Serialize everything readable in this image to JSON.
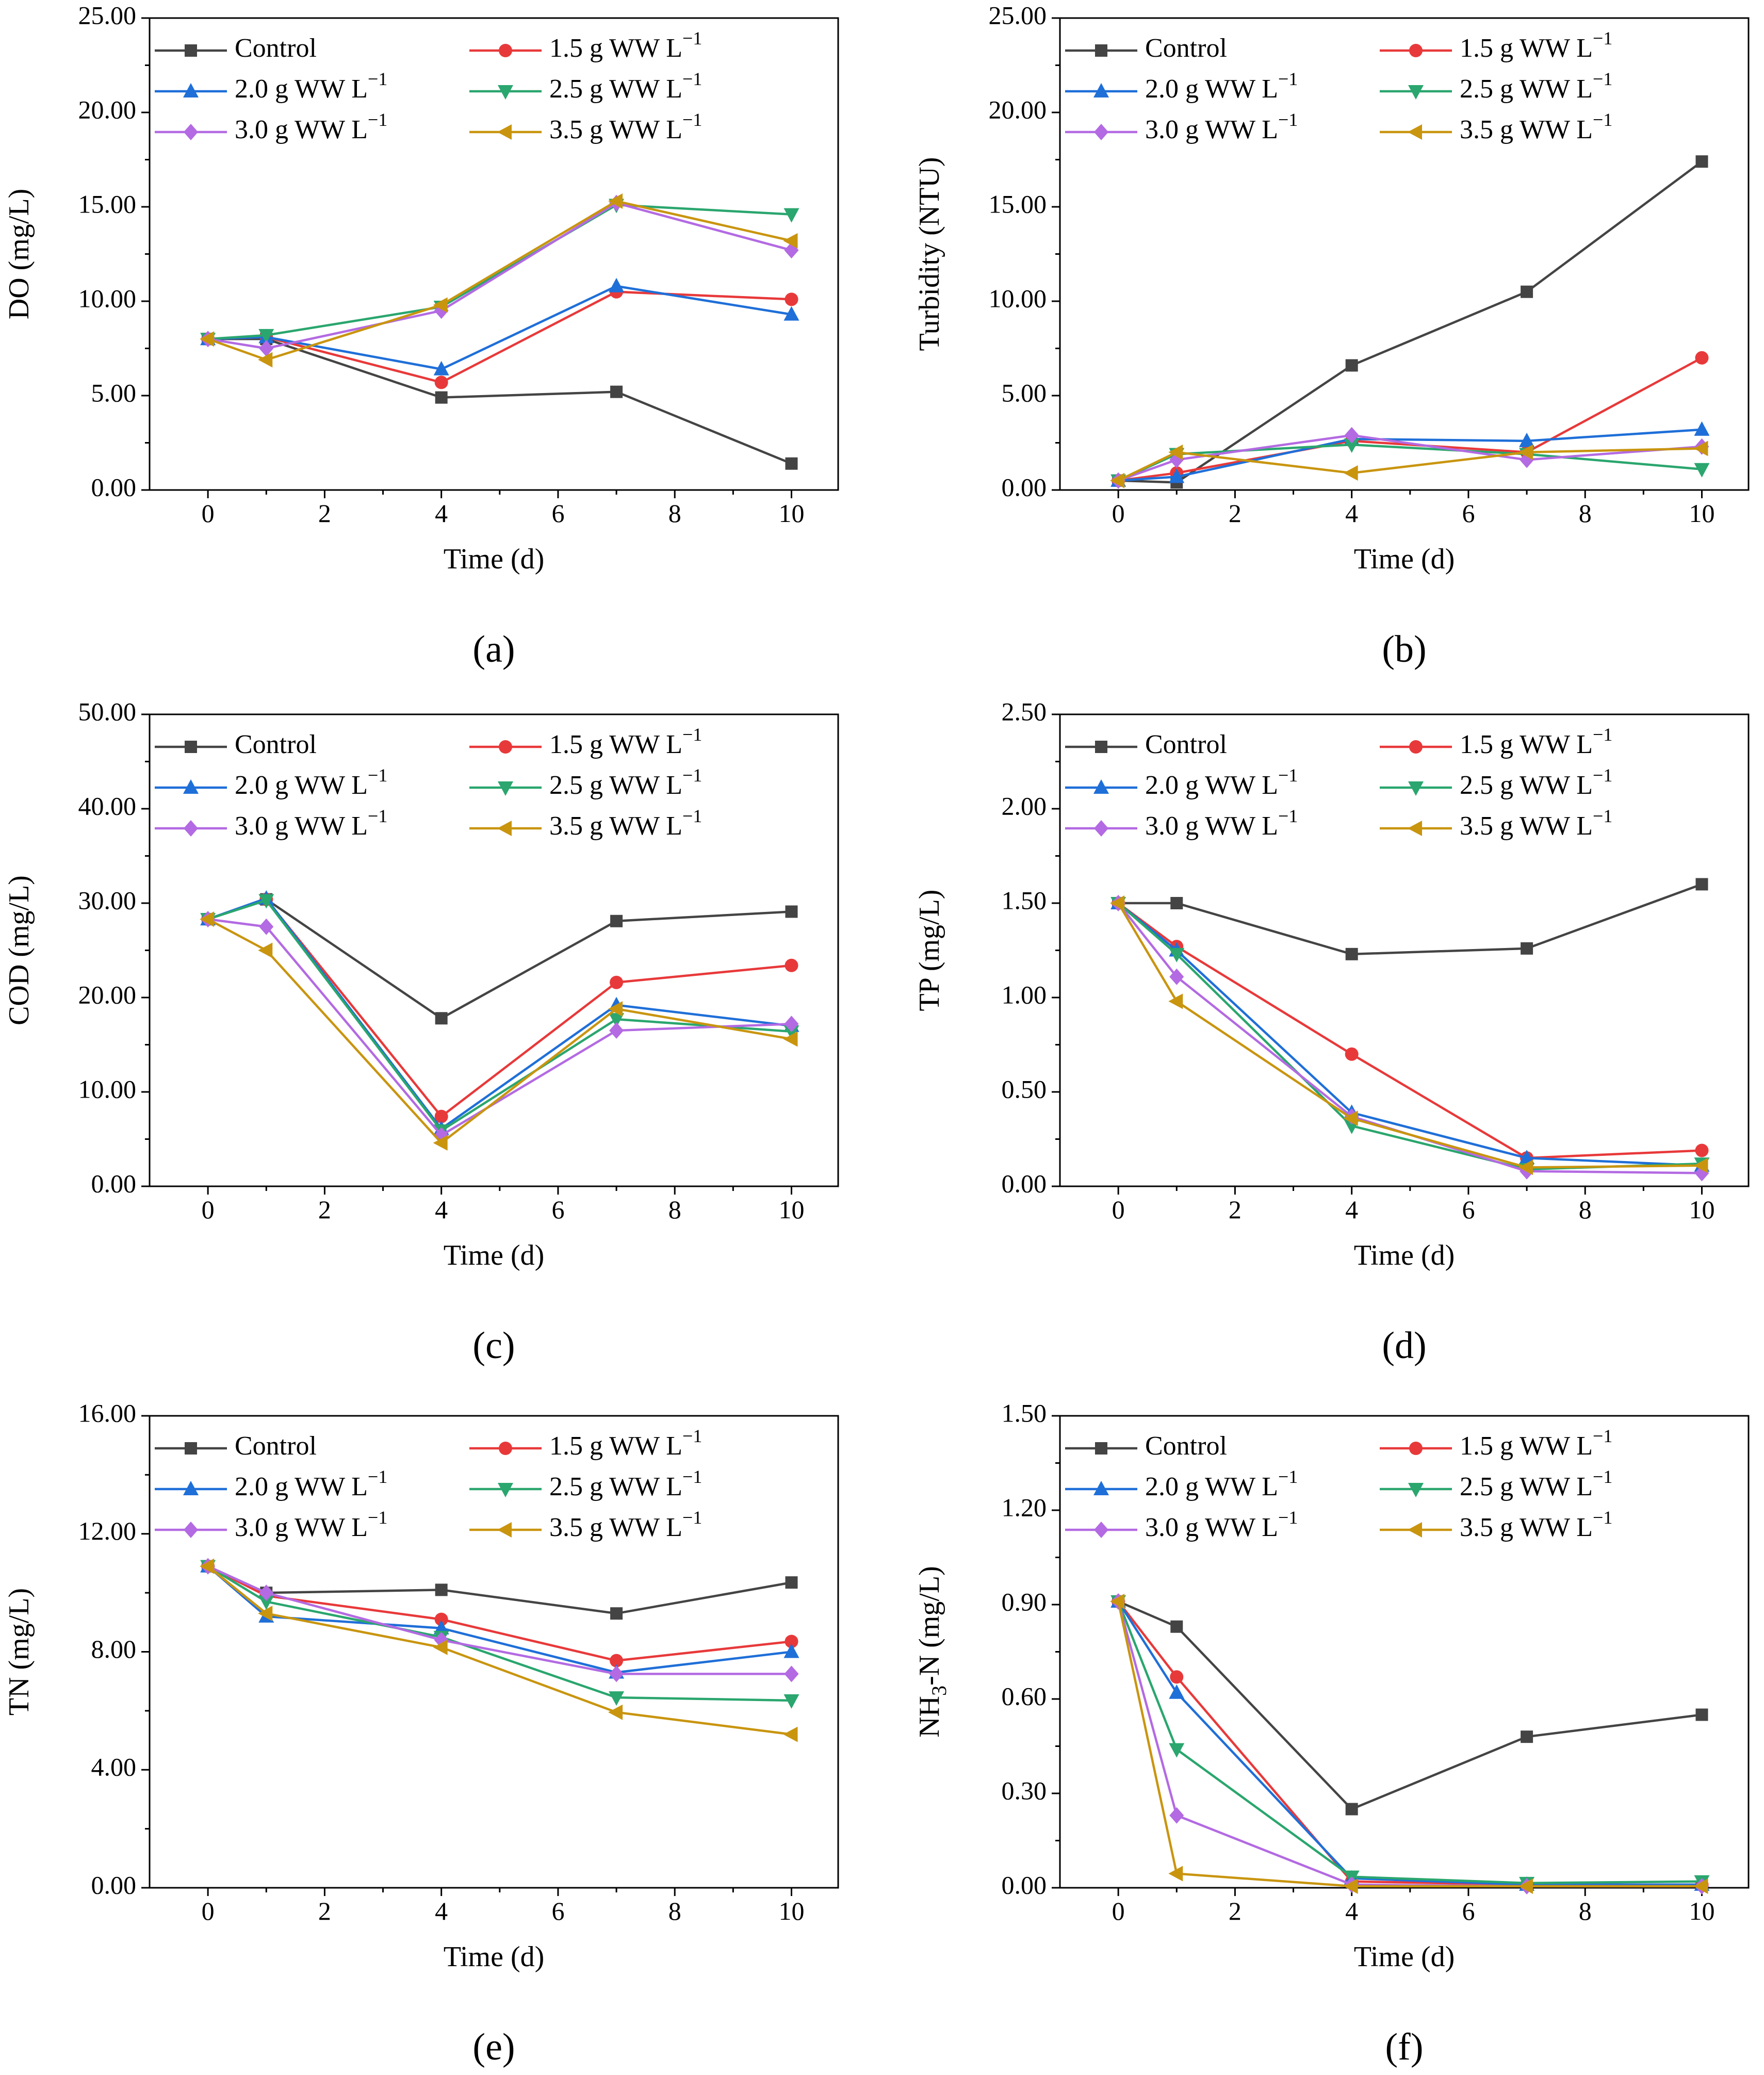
{
  "figure": {
    "legend": [
      "Control",
      "1.5 g WW L−1",
      "2.0 g WW L−1",
      "2.5 g WW L−1",
      "3.0 g WW L−1",
      "3.5 g WW L−1"
    ],
    "series_colors": [
      "#444444",
      "#e8393a",
      "#1f6fd8",
      "#2aa66e",
      "#b36ae2",
      "#c9950f"
    ],
    "markers": [
      "square",
      "circle",
      "triangle-up",
      "triangle-down",
      "diamond",
      "triangle-left"
    ]
  },
  "chart_data": [
    {
      "panel": "(a)",
      "type": "line",
      "xlabel": "Time (d)",
      "ylabel": "DO (mg/L)",
      "xlim": [
        -1,
        10.8
      ],
      "xticks": [
        0,
        2,
        4,
        6,
        8,
        10
      ],
      "ylim": [
        0,
        25
      ],
      "yticks": [
        0,
        5,
        10,
        15,
        20,
        25
      ],
      "ydecimals": 2,
      "x": [
        0,
        1,
        4,
        7,
        10
      ],
      "series": [
        {
          "name": "Control",
          "values": [
            8.0,
            8.0,
            4.9,
            5.2,
            1.4
          ]
        },
        {
          "name": "1.5 g WW L−1",
          "values": [
            8.0,
            8.1,
            5.7,
            10.5,
            10.1
          ]
        },
        {
          "name": "2.0 g WW L−1",
          "values": [
            8.0,
            8.1,
            6.4,
            10.8,
            9.3
          ]
        },
        {
          "name": "2.5 g WW L−1",
          "values": [
            8.0,
            8.2,
            9.7,
            15.1,
            14.6
          ]
        },
        {
          "name": "3.0 g WW L−1",
          "values": [
            8.0,
            7.5,
            9.5,
            15.2,
            12.7
          ]
        },
        {
          "name": "3.5 g WW L−1",
          "values": [
            8.0,
            6.9,
            9.8,
            15.3,
            13.2
          ]
        }
      ]
    },
    {
      "panel": "(b)",
      "type": "line",
      "xlabel": "Time (d)",
      "ylabel": "Turbidity (NTU)",
      "xlim": [
        -1,
        10.8
      ],
      "xticks": [
        0,
        2,
        4,
        6,
        8,
        10
      ],
      "ylim": [
        0,
        25
      ],
      "yticks": [
        0,
        5,
        10,
        15,
        20,
        25
      ],
      "ydecimals": 2,
      "x": [
        0,
        1,
        4,
        7,
        10
      ],
      "series": [
        {
          "name": "Control",
          "values": [
            0.5,
            0.4,
            6.6,
            10.5,
            17.4
          ]
        },
        {
          "name": "1.5 g WW L−1",
          "values": [
            0.5,
            0.9,
            2.6,
            2.0,
            7.0
          ]
        },
        {
          "name": "2.0 g WW L−1",
          "values": [
            0.5,
            0.7,
            2.7,
            2.6,
            3.2
          ]
        },
        {
          "name": "2.5 g WW L−1",
          "values": [
            0.5,
            1.9,
            2.4,
            1.9,
            1.1
          ]
        },
        {
          "name": "3.0 g WW L−1",
          "values": [
            0.5,
            1.6,
            2.9,
            1.6,
            2.3
          ]
        },
        {
          "name": "3.5 g WW L−1",
          "values": [
            0.5,
            2.0,
            0.9,
            2.0,
            2.2
          ]
        }
      ]
    },
    {
      "panel": "(c)",
      "type": "line",
      "xlabel": "Time (d)",
      "ylabel": "COD (mg/L)",
      "xlim": [
        -1,
        10.8
      ],
      "xticks": [
        0,
        2,
        4,
        6,
        8,
        10
      ],
      "ylim": [
        0,
        50
      ],
      "yticks": [
        0,
        10,
        20,
        30,
        40,
        50
      ],
      "ydecimals": 2,
      "x": [
        0,
        1,
        4,
        7,
        10
      ],
      "series": [
        {
          "name": "Control",
          "values": [
            28.3,
            30.4,
            17.8,
            28.1,
            29.1
          ]
        },
        {
          "name": "1.5 g WW L−1",
          "values": [
            28.3,
            30.4,
            7.4,
            21.6,
            23.4
          ]
        },
        {
          "name": "2.0 g WW L−1",
          "values": [
            28.3,
            30.5,
            6.1,
            19.2,
            17.0
          ]
        },
        {
          "name": "2.5 g WW L−1",
          "values": [
            28.3,
            30.3,
            5.9,
            17.7,
            16.4
          ]
        },
        {
          "name": "3.0 g WW L−1",
          "values": [
            28.3,
            27.5,
            5.4,
            16.5,
            17.2
          ]
        },
        {
          "name": "3.5 g WW L−1",
          "values": [
            28.3,
            25.0,
            4.6,
            18.8,
            15.6
          ]
        }
      ]
    },
    {
      "panel": "(d)",
      "type": "line",
      "xlabel": "Time (d)",
      "ylabel": "TP (mg/L)",
      "xlim": [
        -1,
        10.8
      ],
      "xticks": [
        0,
        2,
        4,
        6,
        8,
        10
      ],
      "ylim": [
        0,
        2.5
      ],
      "yticks": [
        0,
        0.5,
        1.0,
        1.5,
        2.0,
        2.5
      ],
      "ydecimals": 2,
      "x": [
        0,
        1,
        4,
        7,
        10
      ],
      "series": [
        {
          "name": "Control",
          "values": [
            1.5,
            1.5,
            1.23,
            1.26,
            1.6
          ]
        },
        {
          "name": "1.5 g WW L−1",
          "values": [
            1.5,
            1.27,
            0.7,
            0.15,
            0.19
          ]
        },
        {
          "name": "2.0 g WW L−1",
          "values": [
            1.5,
            1.25,
            0.39,
            0.15,
            0.11
          ]
        },
        {
          "name": "2.5 g WW L−1",
          "values": [
            1.5,
            1.23,
            0.32,
            0.09,
            0.12
          ]
        },
        {
          "name": "3.0 g WW L−1",
          "values": [
            1.5,
            1.11,
            0.37,
            0.08,
            0.07
          ]
        },
        {
          "name": "3.5 g WW L−1",
          "values": [
            1.5,
            0.98,
            0.36,
            0.1,
            0.11
          ]
        }
      ]
    },
    {
      "panel": "(e)",
      "type": "line",
      "xlabel": "Time (d)",
      "ylabel": "TN (mg/L)",
      "xlim": [
        -1,
        10.8
      ],
      "xticks": [
        0,
        2,
        4,
        6,
        8,
        10
      ],
      "ylim": [
        0,
        16
      ],
      "yticks": [
        0,
        4,
        8,
        12,
        16
      ],
      "ydecimals": 2,
      "x": [
        0,
        1,
        4,
        7,
        10
      ],
      "series": [
        {
          "name": "Control",
          "values": [
            10.9,
            10.0,
            10.1,
            9.3,
            10.35
          ]
        },
        {
          "name": "1.5 g WW L−1",
          "values": [
            10.9,
            9.9,
            9.1,
            7.7,
            8.35
          ]
        },
        {
          "name": "2.0 g WW L−1",
          "values": [
            10.9,
            9.2,
            8.8,
            7.3,
            8.0
          ]
        },
        {
          "name": "2.5 g WW L−1",
          "values": [
            10.9,
            9.7,
            8.5,
            6.45,
            6.35
          ]
        },
        {
          "name": "3.0 g WW L−1",
          "values": [
            10.9,
            10.0,
            8.4,
            7.25,
            7.25
          ]
        },
        {
          "name": "3.5 g WW L−1",
          "values": [
            10.9,
            9.3,
            8.15,
            5.95,
            5.2
          ]
        }
      ]
    },
    {
      "panel": "(f)",
      "type": "line",
      "xlabel": "Time (d)",
      "ylabel": "NH3-N (mg/L)",
      "ylabel_sub": "3",
      "xlim": [
        -1,
        10.8
      ],
      "xticks": [
        0,
        2,
        4,
        6,
        8,
        10
      ],
      "ylim": [
        0,
        1.5
      ],
      "yticks": [
        0,
        0.3,
        0.6,
        0.9,
        1.2,
        1.5
      ],
      "ydecimals": 2,
      "x": [
        0,
        1,
        4,
        7,
        10
      ],
      "series": [
        {
          "name": "Control",
          "values": [
            0.91,
            0.83,
            0.25,
            0.48,
            0.55
          ]
        },
        {
          "name": "1.5 g WW L−1",
          "values": [
            0.91,
            0.67,
            0.02,
            0.01,
            0.01
          ]
        },
        {
          "name": "2.0 g WW L−1",
          "values": [
            0.91,
            0.62,
            0.03,
            0.01,
            0.01
          ]
        },
        {
          "name": "2.5 g WW L−1",
          "values": [
            0.91,
            0.44,
            0.035,
            0.015,
            0.02
          ]
        },
        {
          "name": "3.0 g WW L−1",
          "values": [
            0.91,
            0.23,
            0.01,
            0.005,
            0.005
          ]
        },
        {
          "name": "3.5 g WW L−1",
          "values": [
            0.91,
            0.045,
            0.005,
            0.005,
            0.005
          ]
        }
      ]
    }
  ]
}
